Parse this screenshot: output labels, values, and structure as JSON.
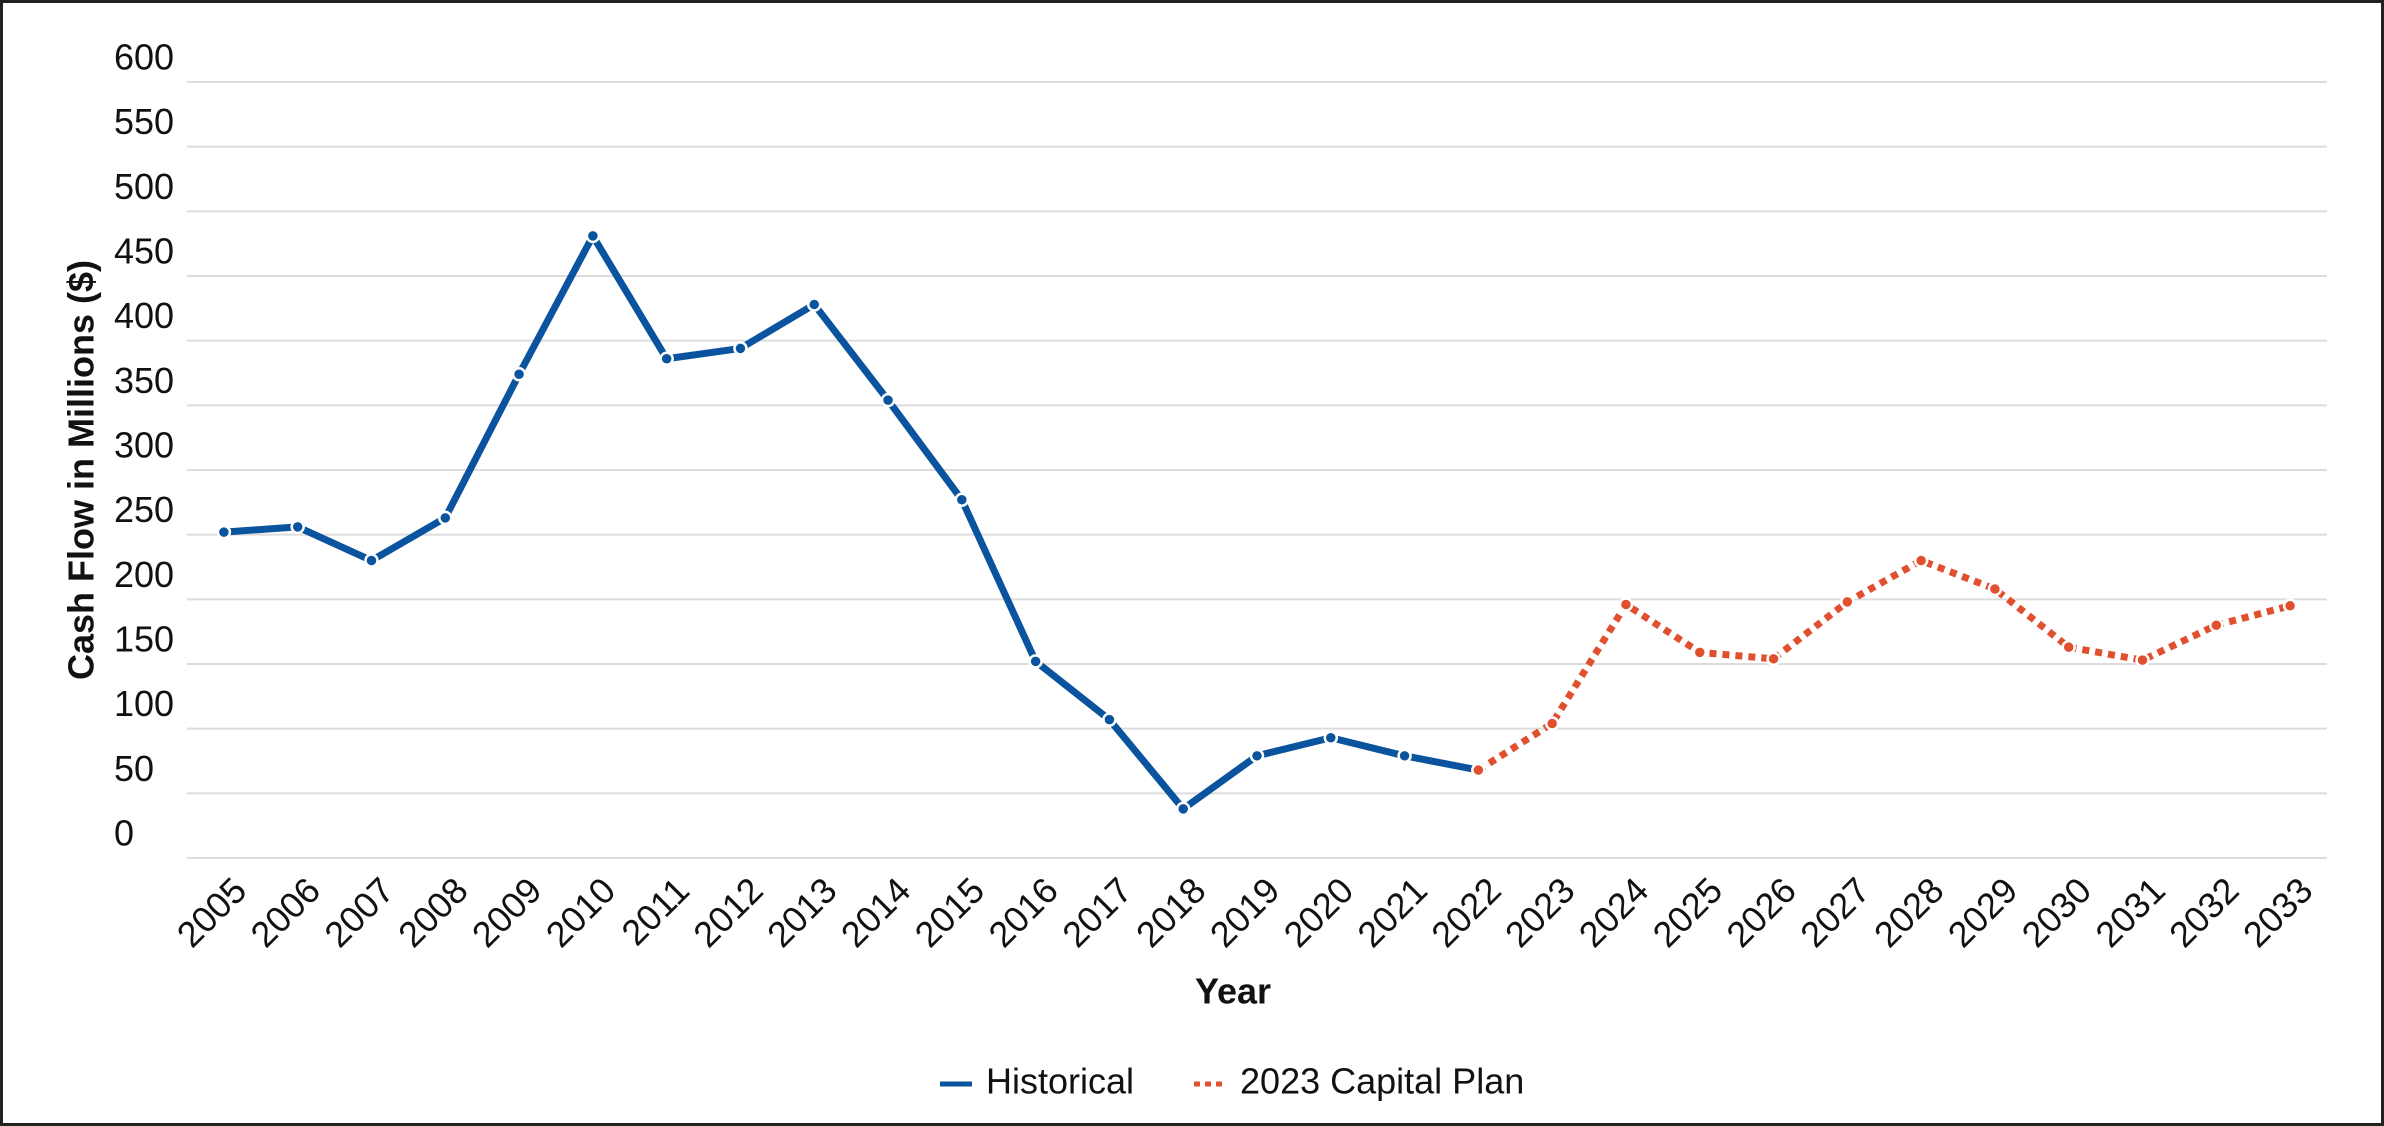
{
  "chart_data": {
    "type": "line",
    "x_label": "Year",
    "y_label": "Cash Flow in Millions ($)",
    "categories": [
      "2005",
      "2006",
      "2007",
      "2008",
      "2009",
      "2010",
      "2011",
      "2012",
      "2013",
      "2014",
      "2015",
      "2016",
      "2017",
      "2018",
      "2019",
      "2020",
      "2021",
      "2022",
      "2023",
      "2024",
      "2025",
      "2026",
      "2027",
      "2028",
      "2029",
      "2030",
      "2031",
      "2032",
      "2033"
    ],
    "series": [
      {
        "name": "Historical",
        "color": "#0a539e",
        "style": "solid",
        "values": [
          252,
          256,
          230,
          263,
          374,
          481,
          386,
          394,
          428,
          354,
          277,
          152,
          107,
          38,
          79,
          93,
          79,
          68,
          null,
          null,
          null,
          null,
          null,
          null,
          null,
          null,
          null,
          null,
          null
        ]
      },
      {
        "name": "2023 Capital Plan",
        "color": "#e0502f",
        "style": "dotted",
        "values": [
          null,
          null,
          null,
          null,
          null,
          null,
          null,
          null,
          null,
          null,
          null,
          null,
          null,
          null,
          null,
          null,
          null,
          68,
          104,
          196,
          159,
          154,
          198,
          230,
          208,
          163,
          153,
          180,
          195
        ]
      }
    ],
    "ylim": [
      0,
      600
    ],
    "yticks": [
      0,
      50,
      100,
      150,
      200,
      250,
      300,
      350,
      400,
      450,
      500,
      550,
      600
    ],
    "grid": true,
    "legend": "bottom"
  }
}
